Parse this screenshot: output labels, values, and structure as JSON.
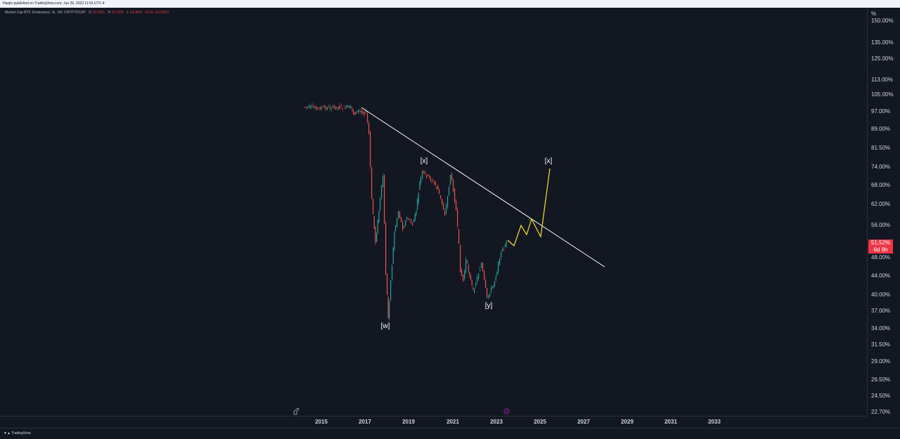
{
  "header": {
    "publisher_line": "Haejin published on TradingView.com, Jun 26, 2023 11:53 UTC-4"
  },
  "legend": {
    "title": "Market Cap BTC Dominance, %, 1W, CRYPTOCAP",
    "open_label": "O",
    "open_value": "51.52%",
    "high_label": "H",
    "high_value": "51.53%",
    "low_label": "L",
    "low_value": "51.46%",
    "change": "+0.01 (+0.02%)"
  },
  "price_axis": {
    "unit": "%",
    "ticks": [
      "150.00%",
      "135.00%",
      "125.00%",
      "113.00%",
      "105.00%",
      "97.00%",
      "89.00%",
      "81.50%",
      "74.00%",
      "68.00%",
      "62.00%",
      "56.00%",
      "48.00%",
      "44.00%",
      "40.00%",
      "37.00%",
      "34.00%",
      "31.50%",
      "29.00%",
      "26.50%",
      "24.50%",
      "22.70%"
    ],
    "current_price": "51.52%",
    "countdown": "6d 9h"
  },
  "time_axis": {
    "years": [
      "2015",
      "2017",
      "2019",
      "2021",
      "2023",
      "2025",
      "2027",
      "2029",
      "2031",
      "2033"
    ]
  },
  "wave_labels": {
    "w": "[w]",
    "x1": "[x]",
    "y": "[y]",
    "x2": "[x]"
  },
  "footer": {
    "brand": "TradingView"
  },
  "colors": {
    "background": "#131722",
    "up_candle": "#26a69a",
    "down_candle": "#ef5350",
    "trendline": "#ffffff",
    "projection": "#f5e22b",
    "price_badge": "#f23645"
  },
  "icons": {
    "dino": "dino-icon",
    "event": "event-flag-icon",
    "logo": "tradingview-logo-icon"
  }
}
